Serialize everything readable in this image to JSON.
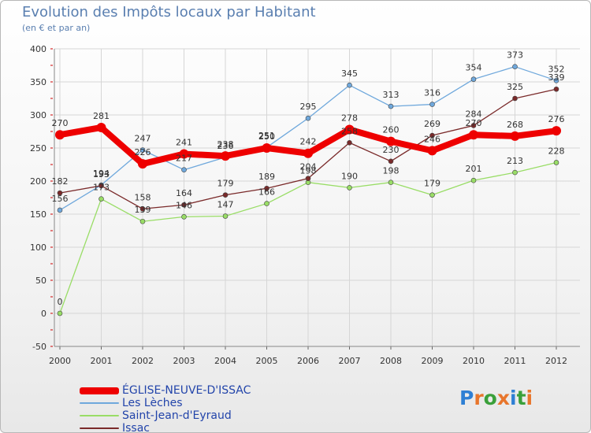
{
  "title": "Evolution des Impôts locaux par Habitant",
  "subtitle": "(en € et par an)",
  "chart_data": {
    "type": "line",
    "title": "Evolution des Impôts locaux par Habitant",
    "subtitle": "(en € et par an)",
    "xlabel": "",
    "ylabel": "",
    "categories": [
      "2000",
      "2001",
      "2002",
      "2003",
      "2004",
      "2005",
      "2006",
      "2007",
      "2008",
      "2009",
      "2010",
      "2011",
      "2012"
    ],
    "ylim": [
      -50,
      400
    ],
    "yticks": [
      -50,
      0,
      50,
      100,
      150,
      200,
      250,
      300,
      350,
      400
    ],
    "grid": true,
    "legend": "bottom-left",
    "series": [
      {
        "name": "ÉGLISE-NEUVE-D'ISSAC",
        "color": "#ee0000",
        "values": [
          270,
          281,
          226,
          241,
          238,
          250,
          242,
          278,
          260,
          246,
          270,
          268,
          276
        ]
      },
      {
        "name": "Les Lèches",
        "color": "#6fa8dc",
        "values": [
          156,
          194,
          247,
          217,
          236,
          251,
          295,
          345,
          313,
          316,
          354,
          373,
          352
        ]
      },
      {
        "name": "Saint-Jean-d'Eyraud",
        "color": "#99dd66",
        "values": [
          0,
          173,
          139,
          146,
          147,
          166,
          198,
          190,
          198,
          179,
          201,
          213,
          228
        ]
      },
      {
        "name": "Issac",
        "color": "#7a2a2a",
        "values": [
          182,
          193,
          158,
          164,
          179,
          189,
          204,
          258,
          230,
          269,
          284,
          325,
          339
        ]
      }
    ]
  },
  "logo": {
    "letters": [
      "P",
      "r",
      "o",
      "x",
      "i",
      "t",
      "i"
    ],
    "colors": [
      "#2e7fd4",
      "#e8762c",
      "#3aa03a",
      "#e8762c",
      "#2e7fd4",
      "#3aa03a",
      "#e8762c"
    ]
  }
}
